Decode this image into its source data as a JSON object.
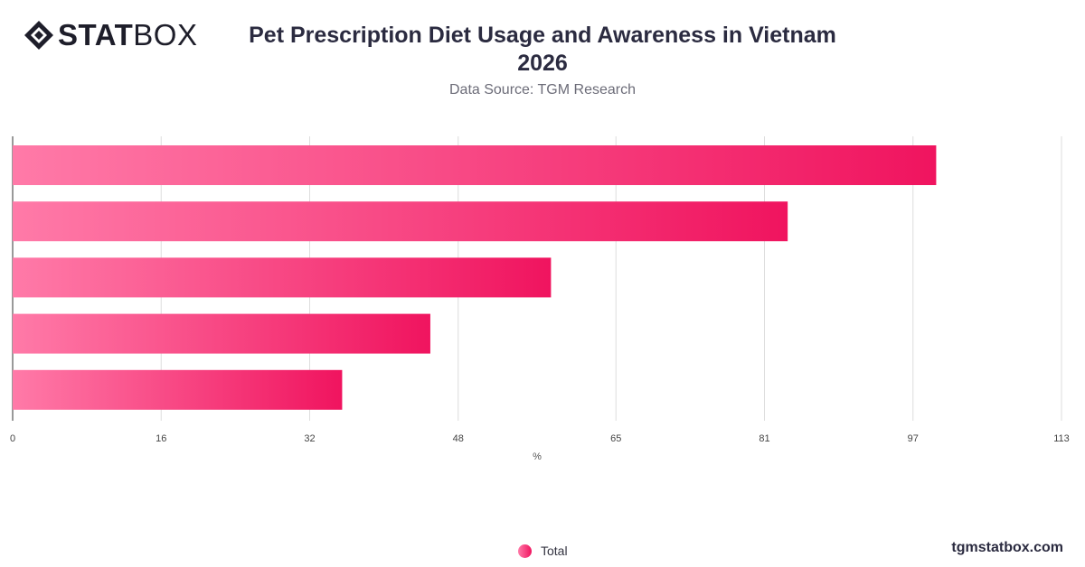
{
  "brand": {
    "logo_bold": "STAT",
    "logo_thin": "BOX",
    "site": "tgmstatbox.com"
  },
  "header": {
    "title_line1": "Pet Prescription Diet Usage and Awareness in Vietnam",
    "title_line2": "2026",
    "subtitle": "Data Source: TGM Research"
  },
  "colors": {
    "bar_start": "#ff7aa8",
    "bar_end": "#f0145f",
    "grid": "#dddddd",
    "axis": "#333333"
  },
  "chart_data": {
    "type": "bar",
    "orientation": "horizontal",
    "categories": [
      "",
      "",
      "",
      "",
      ""
    ],
    "series": [
      {
        "name": "Total",
        "values": [
          99.5,
          83.5,
          58,
          45,
          35.5
        ]
      }
    ],
    "xlabel": "%",
    "ylabel": "",
    "xlim": [
      0,
      113
    ],
    "xticks": [
      0,
      16,
      32,
      48,
      65,
      81,
      97,
      113
    ],
    "grid": true,
    "legend_position": "bottom-center"
  }
}
